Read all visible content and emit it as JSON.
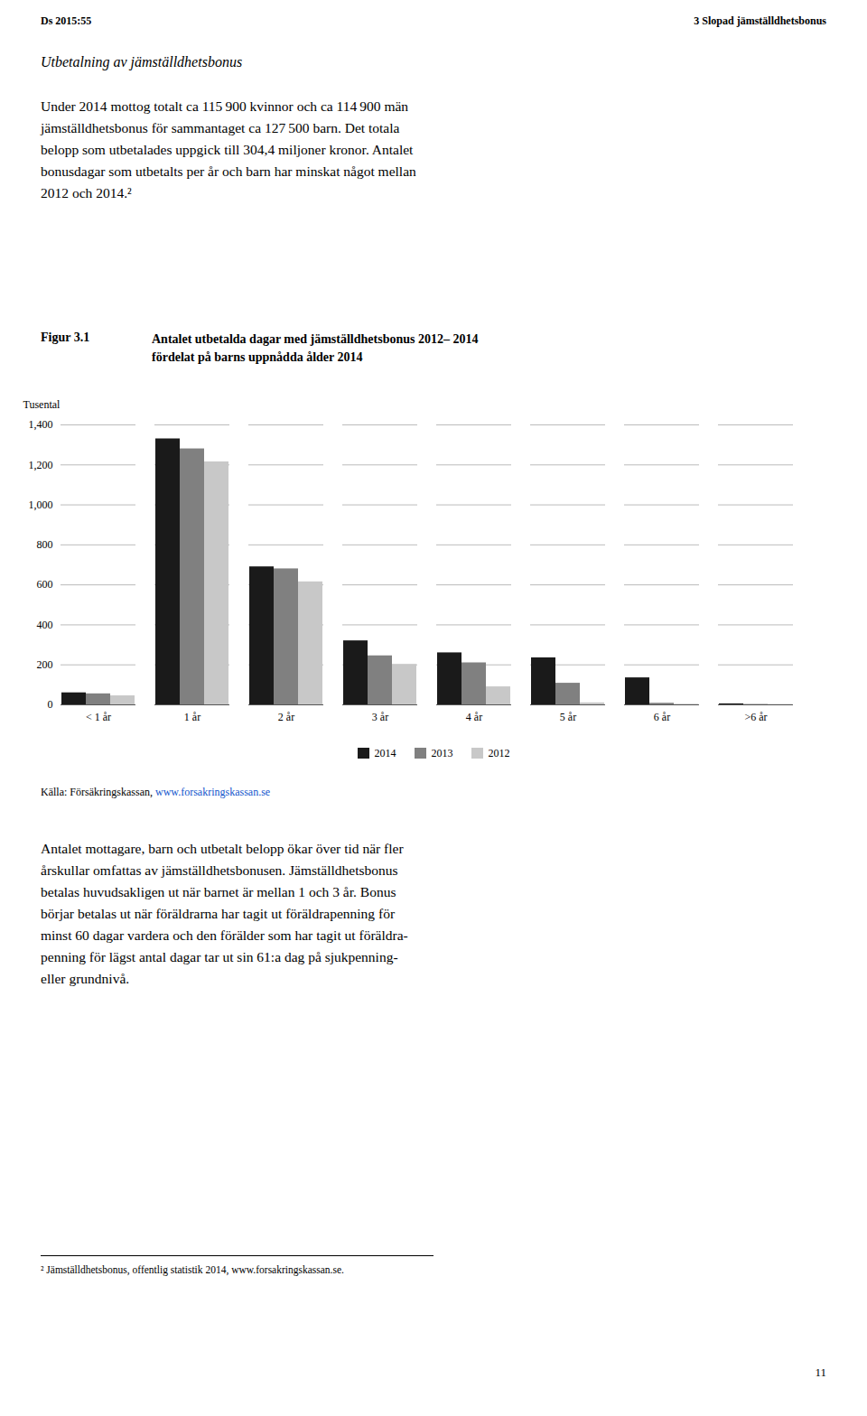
{
  "header": [
    "Ds 2015:55",
    "3 Slopad jämställdhetsbonus"
  ],
  "section_title": "Utbetalning av jämställdhetsbonus",
  "body1": [
    "Under 2014 mottog totalt ca 115 900 kvinnor och ca 114 900 män",
    "jämställdhetsbonus för sammantaget ca 127 500 barn. Det totala",
    "belopp som utbetalades uppgick till 304,4 miljoner kronor. Antalet",
    "bonusdagar som utbetalts per år och barn har minskat något mellan",
    "2012 och 2014.²"
  ],
  "source": [
    "Källa: Försäkringskassan, ",
    "www.forsakringskassan.se"
  ],
  "body2": [
    "Antalet mottagare, barn och utbetalt belopp ökar över tid när fler",
    "årskullar omfattas av jämställdhetsbonusen. Jämställdhetsbonus",
    "betalas huvudsakligen ut när barnet är mellan 1 och 3 år. Bonus",
    "börjar betalas ut när föräldrarna har tagit ut föräldrapenning för",
    "minst 60 dagar vardera och den förälder som har tagit ut föräldra-",
    "penning för lägst antal dagar tar ut sin 61:a dag på sjukpenning-",
    "eller grundnivå."
  ],
  "footnote": "² Jämställdhetsbonus, offentlig statistik 2014, www.forsakringskassan.se.",
  "page_number": "11",
  "chart_data": {
    "type": "bar",
    "figure_label": "Figur 3.1",
    "title": "Antalet utbetalda dagar med jämställdhetsbonus 2012– 2014\nfördelat på barns uppnådda ålder 2014",
    "ylabel": "Tusental",
    "categories": [
      "< 1 år",
      "1 år",
      "2 år",
      "3 år",
      "4 år",
      "5 år",
      "6 år",
      ">6 år"
    ],
    "series": [
      {
        "name": "2014",
        "color": "#1a1a1a",
        "values": [
          60,
          1330,
          690,
          320,
          260,
          235,
          135,
          5
        ]
      },
      {
        "name": "2013",
        "color": "#808080",
        "values": [
          55,
          1280,
          680,
          245,
          210,
          108,
          8,
          2
        ]
      },
      {
        "name": "2012",
        "color": "#c8c8c8",
        "values": [
          45,
          1215,
          615,
          202,
          90,
          10,
          3,
          2
        ]
      }
    ],
    "ylim": [
      0,
      1400
    ],
    "yticks": [
      0,
      200,
      400,
      600,
      800,
      1000,
      1200,
      1400
    ],
    "grid": true,
    "legend": "bottom"
  }
}
